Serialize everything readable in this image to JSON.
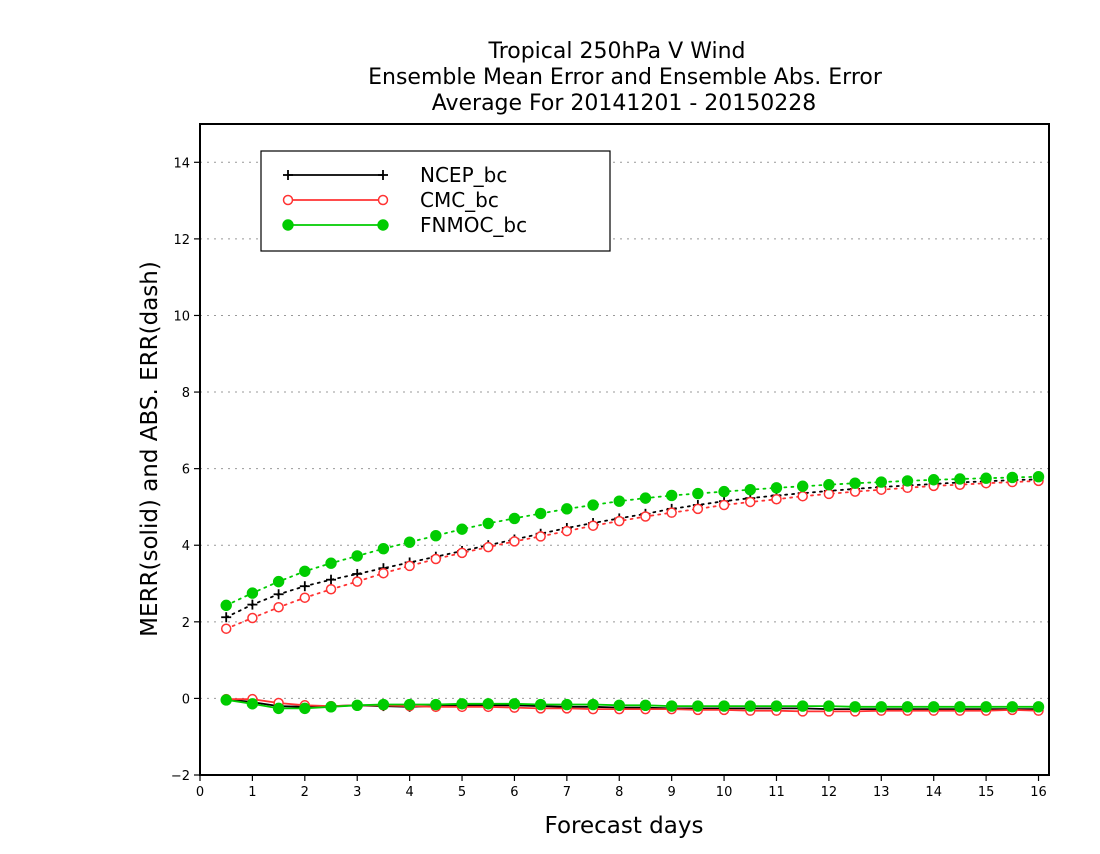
{
  "chart_data": {
    "type": "line",
    "title_lines": [
      "Tropical 250hPa V Wind",
      "Ensemble Mean Error and Ensemble Abs. Error",
      "Average For 20141201 - 20150228"
    ],
    "xlabel": "Forecast days",
    "ylabel": "MERR(solid) and ABS. ERR(dash)",
    "xlim": [
      0,
      16.2
    ],
    "ylim": [
      -2,
      15
    ],
    "x_ticks": [
      0,
      1,
      2,
      3,
      4,
      5,
      6,
      7,
      8,
      9,
      10,
      11,
      12,
      13,
      14,
      15,
      16
    ],
    "y_ticks": [
      -2,
      0,
      2,
      4,
      6,
      8,
      10,
      12,
      14
    ],
    "y_gridlines": [
      0,
      2,
      4,
      6,
      8,
      10,
      12,
      14
    ],
    "grid": "horizontal dotted",
    "legend_position": "top-left",
    "x": [
      0.5,
      1,
      1.5,
      2,
      2.5,
      3,
      3.5,
      4,
      4.5,
      5,
      5.5,
      6,
      6.5,
      7,
      7.5,
      8,
      8.5,
      9,
      9.5,
      10,
      10.5,
      11,
      11.5,
      12,
      12.5,
      13,
      13.5,
      14,
      14.5,
      15,
      15.5,
      16
    ],
    "series": [
      {
        "name": "NCEP_bc",
        "color": "#000000",
        "marker": "plus",
        "merr": [
          -0.02,
          -0.1,
          -0.2,
          -0.22,
          -0.2,
          -0.18,
          -0.2,
          -0.22,
          -0.2,
          -0.18,
          -0.18,
          -0.18,
          -0.2,
          -0.22,
          -0.22,
          -0.24,
          -0.24,
          -0.26,
          -0.26,
          -0.26,
          -0.26,
          -0.26,
          -0.26,
          -0.28,
          -0.28,
          -0.28,
          -0.28,
          -0.28,
          -0.28,
          -0.28,
          -0.28,
          -0.28
        ],
        "abs_err": [
          2.12,
          2.45,
          2.72,
          2.93,
          3.1,
          3.25,
          3.4,
          3.55,
          3.7,
          3.85,
          4.0,
          4.15,
          4.3,
          4.45,
          4.58,
          4.7,
          4.82,
          4.95,
          5.05,
          5.15,
          5.23,
          5.3,
          5.36,
          5.42,
          5.47,
          5.52,
          5.56,
          5.6,
          5.64,
          5.67,
          5.7,
          5.72
        ]
      },
      {
        "name": "CMC_bc",
        "color": "#ff3333",
        "marker": "open-circle",
        "merr": [
          -0.02,
          -0.02,
          -0.12,
          -0.18,
          -0.2,
          -0.18,
          -0.18,
          -0.2,
          -0.22,
          -0.22,
          -0.22,
          -0.24,
          -0.26,
          -0.26,
          -0.28,
          -0.28,
          -0.28,
          -0.28,
          -0.3,
          -0.3,
          -0.32,
          -0.32,
          -0.34,
          -0.34,
          -0.34,
          -0.32,
          -0.32,
          -0.32,
          -0.32,
          -0.32,
          -0.3,
          -0.32
        ],
        "abs_err": [
          1.82,
          2.1,
          2.38,
          2.63,
          2.85,
          3.05,
          3.27,
          3.46,
          3.64,
          3.8,
          3.95,
          4.1,
          4.23,
          4.37,
          4.51,
          4.63,
          4.75,
          4.85,
          4.95,
          5.05,
          5.13,
          5.2,
          5.28,
          5.34,
          5.4,
          5.45,
          5.5,
          5.55,
          5.58,
          5.62,
          5.65,
          5.68
        ]
      },
      {
        "name": "FNMOC_bc",
        "color": "#00cc00",
        "marker": "filled-circle",
        "merr": [
          -0.04,
          -0.14,
          -0.26,
          -0.26,
          -0.22,
          -0.18,
          -0.16,
          -0.16,
          -0.16,
          -0.14,
          -0.14,
          -0.14,
          -0.16,
          -0.16,
          -0.16,
          -0.18,
          -0.18,
          -0.2,
          -0.2,
          -0.2,
          -0.2,
          -0.2,
          -0.2,
          -0.2,
          -0.22,
          -0.22,
          -0.22,
          -0.22,
          -0.22,
          -0.22,
          -0.22,
          -0.22
        ],
        "abs_err": [
          2.43,
          2.75,
          3.05,
          3.32,
          3.53,
          3.72,
          3.91,
          4.08,
          4.25,
          4.42,
          4.57,
          4.7,
          4.83,
          4.95,
          5.05,
          5.15,
          5.23,
          5.3,
          5.35,
          5.4,
          5.45,
          5.5,
          5.54,
          5.58,
          5.62,
          5.65,
          5.68,
          5.71,
          5.73,
          5.75,
          5.77,
          5.79
        ]
      }
    ]
  }
}
